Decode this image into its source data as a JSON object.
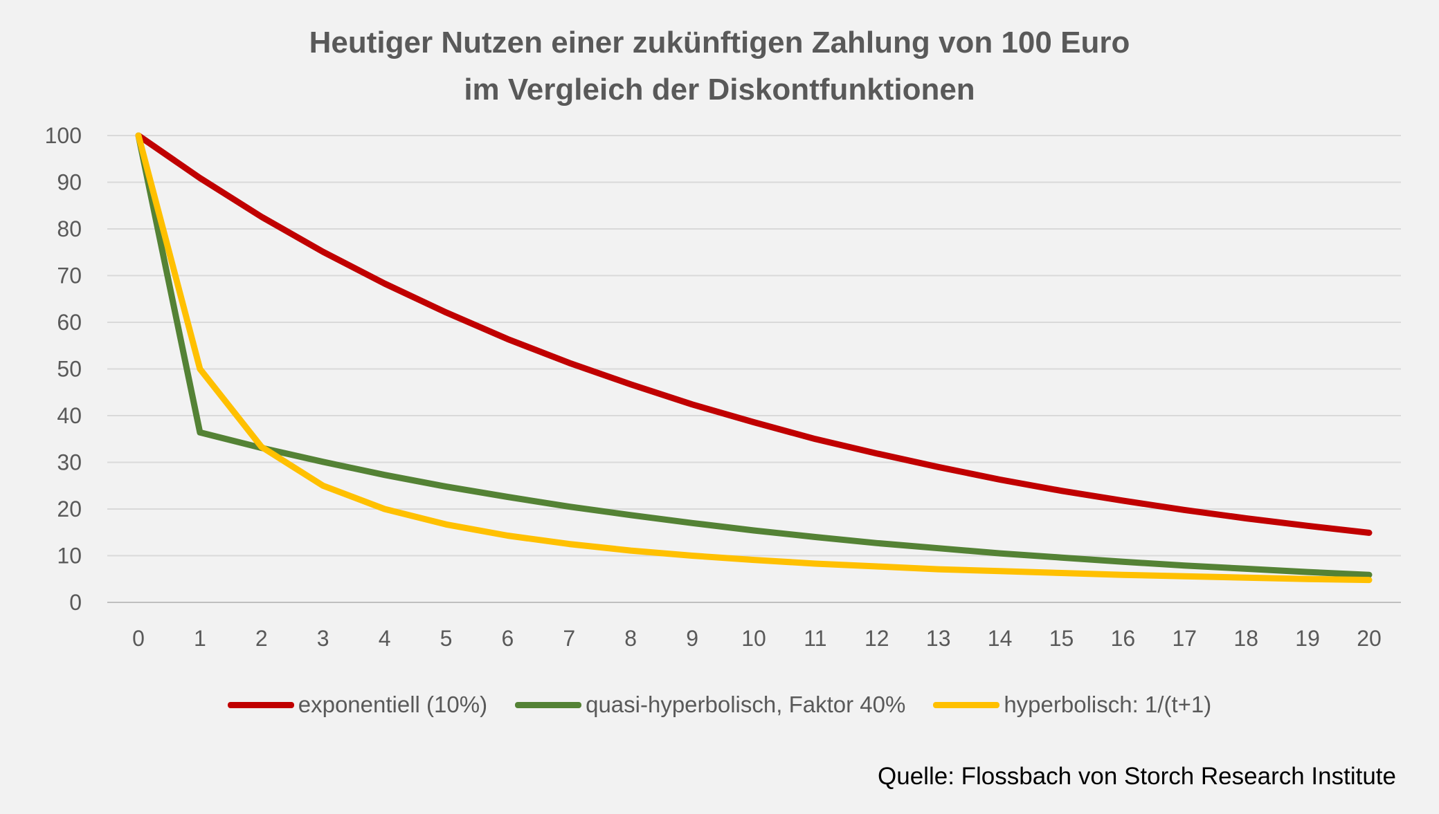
{
  "chart_data": {
    "type": "line",
    "title_lines": [
      "Heutiger Nutzen einer zukünftigen Zahlung von 100 Euro",
      "im Vergleich der Diskontfunktionen"
    ],
    "x": [
      0,
      1,
      2,
      3,
      4,
      5,
      6,
      7,
      8,
      9,
      10,
      11,
      12,
      13,
      14,
      15,
      16,
      17,
      18,
      19,
      20
    ],
    "x_tick_labels": [
      "0",
      "1",
      "2",
      "3",
      "4",
      "5",
      "6",
      "7",
      "8",
      "9",
      "10",
      "11",
      "12",
      "13",
      "14",
      "15",
      "16",
      "17",
      "18",
      "19",
      "20"
    ],
    "y_tick_labels": [
      "0",
      "10",
      "20",
      "30",
      "40",
      "50",
      "60",
      "70",
      "80",
      "90",
      "100"
    ],
    "ylim": [
      0,
      100
    ],
    "grid": true,
    "legend_position": "bottom",
    "series": [
      {
        "name": "exponentiell (10%)",
        "color": "#c00000",
        "values": [
          100,
          90.9,
          82.6,
          75.1,
          68.3,
          62.1,
          56.4,
          51.3,
          46.7,
          42.4,
          38.6,
          35.0,
          31.9,
          29.0,
          26.3,
          23.9,
          21.8,
          19.8,
          18.0,
          16.4,
          14.9
        ]
      },
      {
        "name": "quasi-hyperbolisch, Faktor 40%",
        "color": "#548235",
        "values": [
          100,
          36.4,
          33.1,
          30.1,
          27.3,
          24.8,
          22.6,
          20.5,
          18.7,
          17.0,
          15.4,
          14.0,
          12.7,
          11.6,
          10.5,
          9.6,
          8.7,
          7.9,
          7.2,
          6.5,
          5.9
        ]
      },
      {
        "name": "hyperbolisch: 1/(t+1)",
        "color": "#ffc000",
        "values": [
          100,
          50.0,
          33.3,
          25.0,
          20.0,
          16.7,
          14.3,
          12.5,
          11.1,
          10.0,
          9.1,
          8.3,
          7.7,
          7.1,
          6.7,
          6.3,
          5.9,
          5.6,
          5.3,
          5.0,
          4.8
        ]
      }
    ]
  },
  "source": "Quelle: Flossbach von Storch Research Institute"
}
